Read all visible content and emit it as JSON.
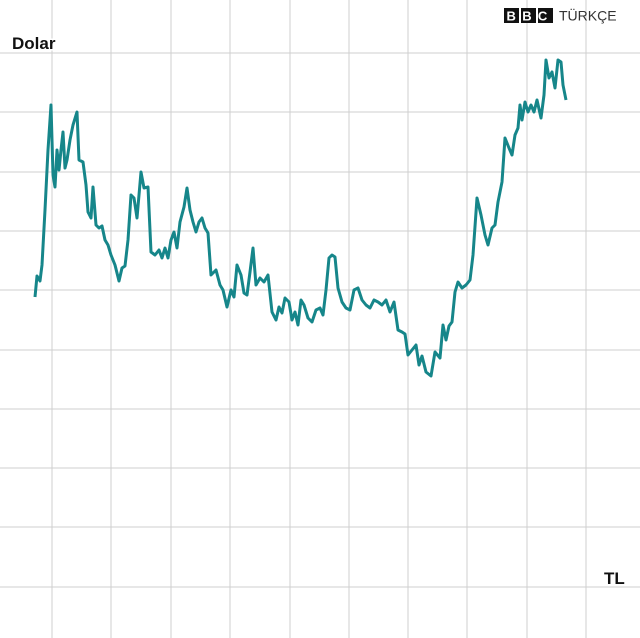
{
  "chart_data": {
    "type": "line",
    "brand": {
      "mark": "BBC",
      "text": "TÜRKÇE"
    },
    "y_label": "Dolar",
    "x_label": "TL",
    "grid": true,
    "xlim": [
      0,
      640
    ],
    "ylim": [
      0,
      638
    ],
    "xticks": [
      52,
      111,
      171,
      230,
      290,
      349,
      408,
      467,
      527,
      586
    ],
    "yticks": [
      51,
      111,
      170,
      229,
      288,
      348,
      407,
      466,
      526,
      585
    ],
    "x": [
      35,
      37,
      40,
      42,
      45,
      48,
      51,
      53,
      55,
      57,
      59,
      61,
      63,
      65,
      67,
      70,
      73,
      77,
      79,
      83,
      86,
      88,
      91,
      93,
      96,
      99,
      102,
      105,
      108,
      111,
      115,
      119,
      122,
      125,
      128,
      131,
      134,
      137,
      141,
      144,
      148,
      151,
      155,
      159,
      162,
      165,
      168,
      171,
      174,
      177,
      180,
      184,
      187,
      190,
      193,
      196,
      199,
      202,
      205,
      208,
      211,
      216,
      220,
      223,
      227,
      231,
      234,
      237,
      241,
      244,
      247,
      250,
      253,
      256,
      260,
      264,
      268,
      272,
      276,
      279,
      282,
      285,
      289,
      292,
      295,
      298,
      301,
      304,
      308,
      312,
      316,
      320,
      323,
      326,
      329,
      332,
      335,
      338,
      342,
      346,
      350,
      354,
      358,
      362,
      366,
      370,
      374,
      378,
      382,
      386,
      390,
      394,
      398,
      402,
      405,
      408,
      412,
      416,
      419,
      422,
      426,
      431,
      435,
      440,
      443,
      446,
      449,
      452,
      455,
      458,
      462,
      466,
      470,
      473,
      477,
      481,
      485,
      488,
      492,
      495,
      498,
      502,
      505,
      509,
      512,
      515,
      518,
      520,
      522,
      525,
      528,
      531,
      534,
      537,
      541,
      544,
      546,
      549,
      552,
      555,
      558,
      561,
      563,
      566
    ],
    "series": [
      {
        "color": "#16868a",
        "values": [
          341,
          362,
          357,
          373,
          428,
          488,
          533,
          463,
          451,
          488,
          468,
          488,
          506,
          470,
          478,
          498,
          513,
          526,
          478,
          476,
          453,
          426,
          420,
          451,
          413,
          410,
          412,
          398,
          393,
          383,
          373,
          357,
          370,
          372,
          398,
          443,
          440,
          420,
          466,
          450,
          451,
          386,
          383,
          388,
          380,
          390,
          380,
          398,
          406,
          390,
          416,
          431,
          450,
          428,
          416,
          406,
          416,
          420,
          410,
          405,
          363,
          368,
          353,
          348,
          331,
          348,
          341,
          373,
          363,
          345,
          343,
          366,
          390,
          353,
          360,
          356,
          363,
          326,
          318,
          331,
          325,
          340,
          336,
          318,
          326,
          313,
          338,
          333,
          320,
          316,
          328,
          330,
          323,
          348,
          380,
          383,
          381,
          350,
          336,
          330,
          328,
          348,
          350,
          338,
          333,
          330,
          338,
          336,
          333,
          338,
          326,
          336,
          308,
          306,
          304,
          283,
          288,
          293,
          273,
          282,
          266,
          262,
          286,
          280,
          313,
          298,
          312,
          316,
          346,
          356,
          350,
          353,
          358,
          383,
          440,
          423,
          403,
          393,
          410,
          413,
          436,
          456,
          500,
          490,
          483,
          503,
          510,
          533,
          518,
          536,
          526,
          533,
          526,
          538,
          520,
          543,
          578,
          560,
          566,
          550,
          578,
          576,
          553,
          538
        ]
      }
    ]
  }
}
